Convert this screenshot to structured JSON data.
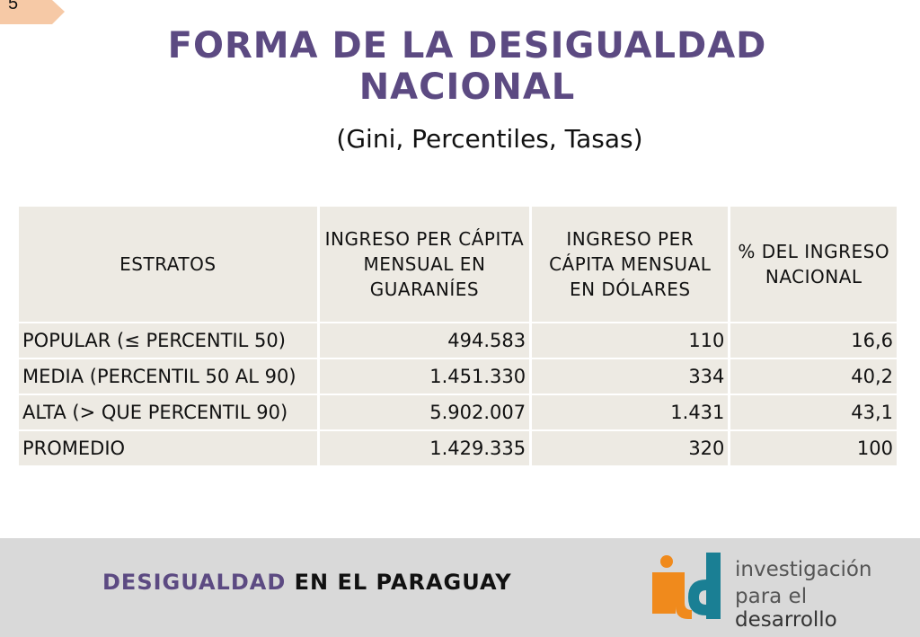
{
  "slide_number": "5",
  "title": "FORMA DE LA DESIGUALDAD NACIONAL",
  "subtitle": "(Gini, Percentiles, Tasas)",
  "table": {
    "headers": [
      "ESTRATOS",
      "INGRESO PER CÁPITA MENSUAL EN GUARANÍES",
      "INGRESO PER CÁPITA MENSUAL EN DÓLARES",
      "% DEL INGRESO NACIONAL"
    ],
    "rows": [
      [
        "POPULAR (≤ PERCENTIL 50)",
        "494.583",
        "110",
        "16,6"
      ],
      [
        "MEDIA (PERCENTIL 50 AL  90)",
        "1.451.330",
        "334",
        "40,2"
      ],
      [
        "ALTA (> QUE PERCENTIL 90)",
        "5.902.007",
        "1.431",
        "43,1"
      ],
      [
        "PROMEDIO",
        "1.429.335",
        "320",
        "100"
      ]
    ]
  },
  "footer": {
    "accent_text": "DESIGUALDAD",
    "text": " EN EL PARAGUAY",
    "logo_text_line1": "investigación",
    "logo_text_line2_a": "para el ",
    "logo_text_line2_b": "desarrollo"
  },
  "colors": {
    "title": "#5c4a82",
    "table_cell": "#edeae3",
    "footer_band": "#d9d9d9",
    "logo_orange": "#f08a1c",
    "logo_teal": "#1a7f94"
  }
}
